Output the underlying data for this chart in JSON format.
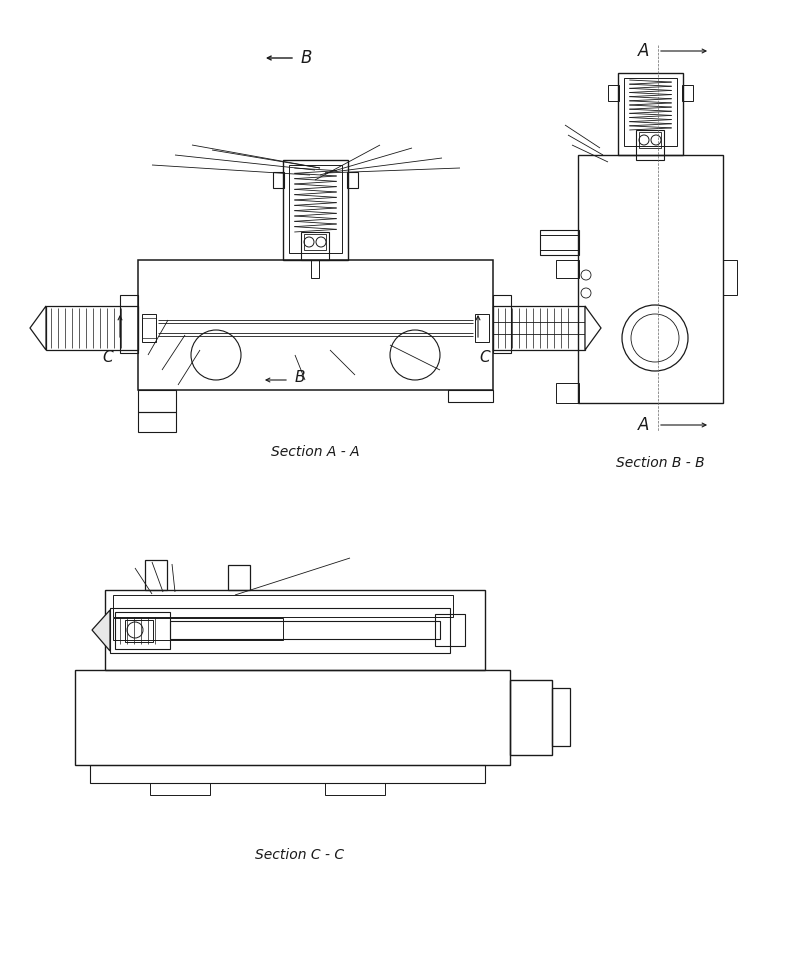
{
  "bg": "#ffffff",
  "lc": "#1a1a1a",
  "section_aa": "Section A - A",
  "section_bb": "Section B - B",
  "section_cc": "Section C - C",
  "figsize": [
    7.92,
    9.61
  ],
  "dpi": 100
}
